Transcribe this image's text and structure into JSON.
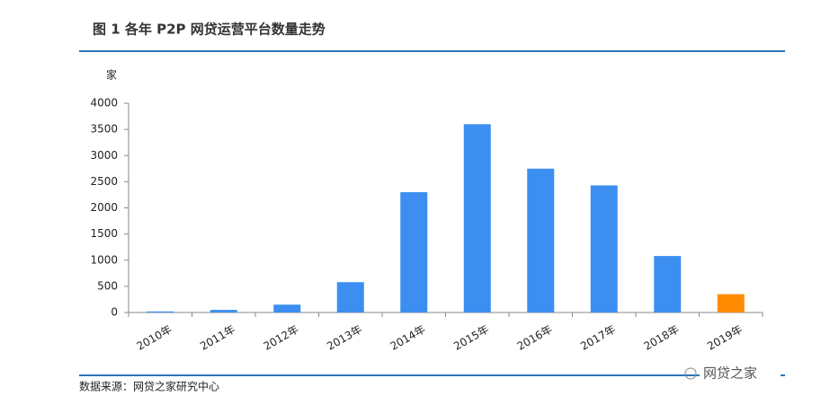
{
  "chart_data": {
    "type": "bar",
    "title": "图 1   各年 P2P 网贷运营平台数量走势",
    "y_label": "家",
    "categories": [
      "2010年",
      "2011年",
      "2012年",
      "2013年",
      "2014年",
      "2015年",
      "2016年",
      "2017年",
      "2018年",
      "2019年"
    ],
    "values": [
      20,
      50,
      150,
      580,
      2300,
      3600,
      2750,
      2430,
      1080,
      350
    ],
    "colors": [
      "#3c8ff0",
      "#3c8ff0",
      "#3c8ff0",
      "#3c8ff0",
      "#3c8ff0",
      "#3c8ff0",
      "#3c8ff0",
      "#3c8ff0",
      "#3c8ff0",
      "#ff8c00"
    ],
    "ylim": [
      0,
      4000
    ],
    "yticks": [
      0,
      500,
      1000,
      1500,
      2000,
      2500,
      3000,
      3500,
      4000
    ],
    "source": "数据来源：网贷之家研究中心",
    "watermark": "网贷之家"
  }
}
